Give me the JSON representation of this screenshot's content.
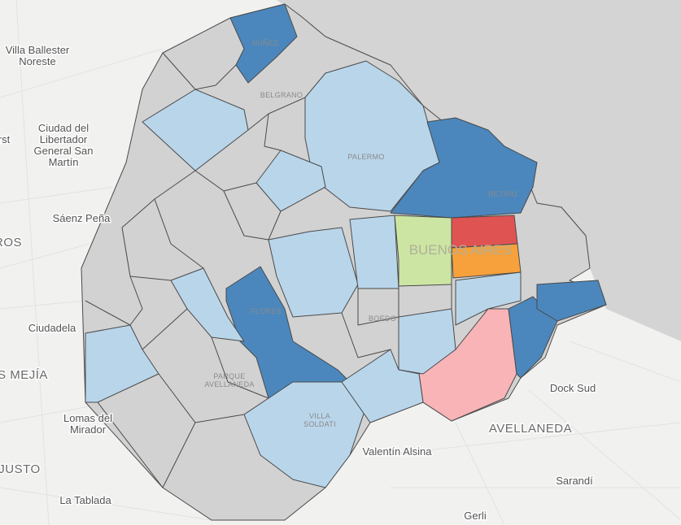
{
  "labels": [
    [
      "Villa Ballester",
      "Noreste"
    ],
    [
      "Ciudad del",
      "Libertador",
      "General San",
      "Martín"
    ],
    [
      "rst"
    ],
    [
      "Sáenz Peña"
    ],
    [
      "ROS"
    ],
    [
      "Ciudadela"
    ],
    [
      "S MEJÍA"
    ],
    [
      "Lomas del",
      "Mirador"
    ],
    [
      "JUSTO"
    ],
    [
      "La Tablada"
    ],
    [
      "NUÑEZ"
    ],
    [
      "BELGRANO"
    ],
    [
      "PALERMO"
    ],
    [
      "RETIRO"
    ],
    [
      "BUENOS AIRES"
    ],
    [
      "FLORES"
    ],
    [
      "BOEDO"
    ],
    [
      "PARQUE",
      "AVELLANEDA"
    ],
    [
      "VILLA",
      "SOLDATI"
    ],
    [
      "Dock Sud"
    ],
    [
      "AVELLANEDA"
    ],
    [
      "Valentín Alsina"
    ],
    [
      "Sarandí"
    ],
    [
      "Gerli"
    ]
  ]
}
